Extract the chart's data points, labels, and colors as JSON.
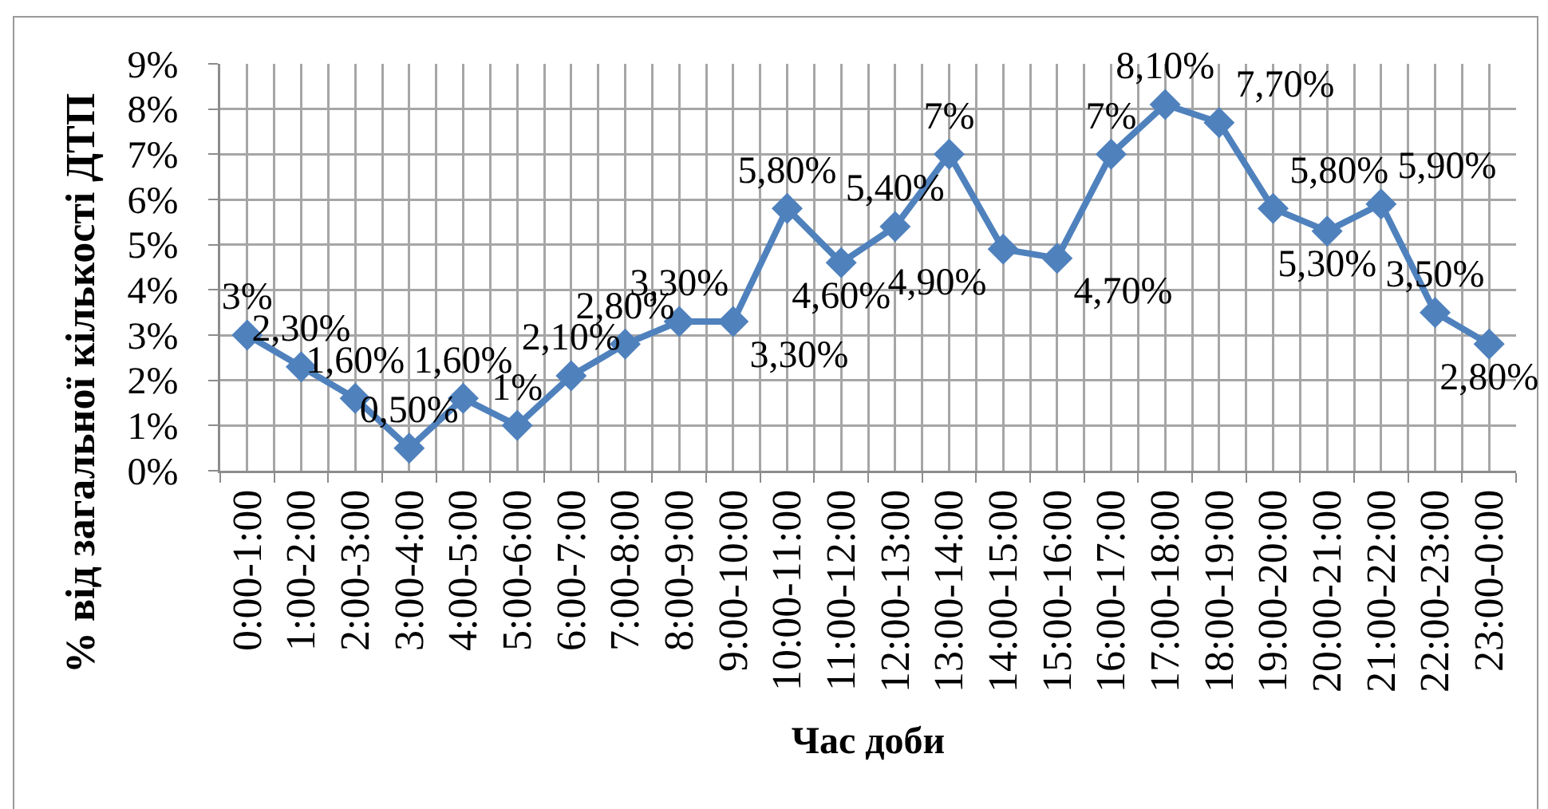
{
  "chart_data": {
    "type": "line",
    "xlabel": "Час доби",
    "ylabel": "% від загальної кількості ДТП",
    "categories": [
      "0:00-1:00",
      "1:00-2:00",
      "2:00-3:00",
      "3:00-4:00",
      "4:00-5:00",
      "5:00-6:00",
      "6:00-7:00",
      "7:00-8:00",
      "8:00-9:00",
      "9:00-10:00",
      "10:00-11:00",
      "11:00-12:00",
      "12:00-13:00",
      "13:00-14:00",
      "14:00-15:00",
      "15:00-16:00",
      "16:00-17:00",
      "17:00-18:00",
      "18:00-19:00",
      "19:00-20:00",
      "20:00-21:00",
      "21:00-22:00",
      "22:00-23:00",
      "23:00-0:00"
    ],
    "series": [
      {
        "color": "#4f81bd",
        "values": [
          3,
          2.3,
          1.6,
          0.5,
          1.6,
          1,
          2.1,
          2.8,
          3.3,
          3.3,
          5.8,
          4.6,
          5.4,
          7,
          4.9,
          4.7,
          7,
          8.1,
          7.7,
          5.8,
          5.3,
          5.9,
          3.5,
          2.8
        ],
        "value_labels": [
          "3%",
          "2,30%",
          "1,60%",
          "0,50%",
          "1,60%",
          "1%",
          "2,10%",
          "2,80%",
          "3,30%",
          "3,30%",
          "5,80%",
          "4,60%",
          "5,40%",
          "7%",
          "4,90%",
          "4,70%",
          "7%",
          "8,10%",
          "7,70%",
          "5,80%",
          "5,30%",
          "5,90%",
          "3,50%",
          "2,80%"
        ]
      }
    ],
    "ylim": [
      0,
      9
    ],
    "yticks": [
      {
        "value": 0,
        "label": "0%"
      },
      {
        "value": 1,
        "label": "1%"
      },
      {
        "value": 2,
        "label": "2%"
      },
      {
        "value": 3,
        "label": "3%"
      },
      {
        "value": 4,
        "label": "4%"
      },
      {
        "value": 5,
        "label": "5%"
      },
      {
        "value": 6,
        "label": "6%"
      },
      {
        "value": 7,
        "label": "7%"
      },
      {
        "value": 8,
        "label": "8%"
      },
      {
        "value": 9,
        "label": "9%"
      }
    ],
    "grid": true,
    "marker": "diamond",
    "line_style": "solid"
  }
}
